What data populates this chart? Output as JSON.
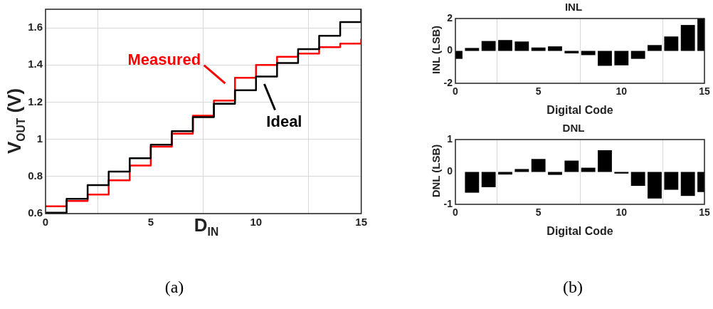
{
  "chart_data": [
    {
      "type": "step",
      "xlabel": "D$_{IN}$",
      "ylabel": "V$_{OUT}$ (V)",
      "x": [
        0,
        1,
        2,
        3,
        4,
        5,
        6,
        7,
        8,
        9,
        10,
        11,
        12,
        13,
        14,
        15
      ],
      "xlim": [
        0,
        15
      ],
      "xticks": [
        0,
        5,
        10,
        15
      ],
      "ylim": [
        0.6,
        1.7
      ],
      "yticks": [
        0.6,
        0.8,
        1,
        1.2,
        1.4,
        1.6
      ],
      "grid": true,
      "series": [
        {
          "name": "Ideal",
          "color": "#000000",
          "values": [
            0.605,
            0.68,
            0.753,
            0.826,
            0.898,
            0.971,
            1.044,
            1.119,
            1.191,
            1.264,
            1.338,
            1.411,
            1.485,
            1.557,
            1.631,
            1.7
          ]
        },
        {
          "name": "Measured",
          "color": "#ff0000",
          "values": [
            0.639,
            0.668,
            0.703,
            0.779,
            0.859,
            0.96,
            1.03,
            1.127,
            1.208,
            1.331,
            1.4,
            1.444,
            1.461,
            1.496,
            1.515,
            1.541
          ]
        }
      ],
      "annotations": [
        "(a)"
      ]
    },
    {
      "type": "bar",
      "title": "INL",
      "xlabel": "Digital Code",
      "ylabel": "INL (LSB)",
      "x": [
        0,
        1,
        2,
        3,
        4,
        5,
        6,
        7,
        8,
        9,
        10,
        11,
        12,
        13,
        14,
        15
      ],
      "xlim": [
        0,
        15
      ],
      "xticks": [
        0,
        5,
        10,
        15
      ],
      "ylim": [
        -2,
        2
      ],
      "yticks": [
        -2,
        0,
        2
      ],
      "grid": "x",
      "legend": false,
      "color": "#000000",
      "values": [
        -0.49,
        0.18,
        0.61,
        0.67,
        0.58,
        0.21,
        0.28,
        -0.15,
        -0.26,
        -0.92,
        -0.89,
        -0.49,
        0.36,
        0.89,
        1.6,
        2.0
      ],
      "annotations": [
        "(b)"
      ]
    },
    {
      "type": "bar",
      "title": "DNL",
      "xlabel": "Digital Code",
      "ylabel": "DNL (LSB)",
      "x": [
        0,
        1,
        2,
        3,
        4,
        5,
        6,
        7,
        8,
        9,
        10,
        11,
        12,
        13,
        14,
        15
      ],
      "xlim": [
        0,
        15
      ],
      "xticks": [
        0,
        5,
        10,
        15
      ],
      "ylim": [
        -1,
        1
      ],
      "yticks": [
        -1,
        0,
        1
      ],
      "grid": "x",
      "legend": false,
      "color": "#000000",
      "values": [
        0,
        -0.64,
        -0.47,
        -0.08,
        0.09,
        0.4,
        -0.09,
        0.35,
        0.13,
        0.67,
        -0.05,
        -0.43,
        -0.82,
        -0.55,
        -0.74,
        -0.62
      ]
    }
  ]
}
